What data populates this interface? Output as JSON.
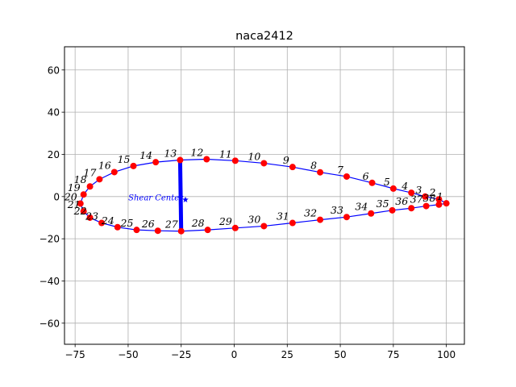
{
  "chart_data": {
    "type": "scatter",
    "title": "naca2412",
    "xlim": [
      -80,
      108.5
    ],
    "ylim": [
      -70,
      71
    ],
    "xticks": [
      -75,
      -50,
      -25,
      0,
      25,
      50,
      75,
      100
    ],
    "yticks": [
      -60,
      -40,
      -20,
      0,
      20,
      40,
      60
    ],
    "xtick_labels": [
      "−75",
      "−50",
      "−25",
      "0",
      "25",
      "50",
      "75",
      "100"
    ],
    "ytick_labels": [
      "−60",
      "−40",
      "−20",
      "0",
      "20",
      "40",
      "60"
    ],
    "grid": true,
    "colors": {
      "nodes": "#ff0000",
      "outline": "#0000ff",
      "spar": "#0000ff",
      "shear_center": "#0000ff"
    },
    "nodes": [
      {
        "label": "1",
        "x": 100.0,
        "y": -3.2
      },
      {
        "label": "2",
        "x": 96.5,
        "y": -1.3
      },
      {
        "label": "3",
        "x": 90.0,
        "y": 0.0
      },
      {
        "label": "4",
        "x": 83.5,
        "y": 1.8
      },
      {
        "label": "5",
        "x": 75.0,
        "y": 3.8
      },
      {
        "label": "6",
        "x": 65.0,
        "y": 6.5
      },
      {
        "label": "7",
        "x": 53.0,
        "y": 9.5
      },
      {
        "label": "8",
        "x": 40.5,
        "y": 11.5
      },
      {
        "label": "9",
        "x": 27.5,
        "y": 14.0
      },
      {
        "label": "10",
        "x": 14.0,
        "y": 15.8
      },
      {
        "label": "11",
        "x": 0.5,
        "y": 17.0
      },
      {
        "label": "12",
        "x": -13.0,
        "y": 17.7
      },
      {
        "label": "13",
        "x": -25.5,
        "y": 17.3
      },
      {
        "label": "14",
        "x": -37.0,
        "y": 16.3
      },
      {
        "label": "15",
        "x": -47.5,
        "y": 14.5
      },
      {
        "label": "16",
        "x": -56.5,
        "y": 11.6
      },
      {
        "label": "17",
        "x": -63.5,
        "y": 8.2
      },
      {
        "label": "18",
        "x": -68.0,
        "y": 4.8
      },
      {
        "label": "19",
        "x": -71.0,
        "y": 1.0
      },
      {
        "label": "20",
        "x": -72.5,
        "y": -3.3
      },
      {
        "label": "21",
        "x": -71.0,
        "y": -7.0
      },
      {
        "label": "22",
        "x": -68.0,
        "y": -10.0
      },
      {
        "label": "23",
        "x": -62.5,
        "y": -12.5
      },
      {
        "label": "24",
        "x": -55.0,
        "y": -14.5
      },
      {
        "label": "25",
        "x": -46.0,
        "y": -15.8
      },
      {
        "label": "26",
        "x": -36.0,
        "y": -16.2
      },
      {
        "label": "27",
        "x": -25.0,
        "y": -16.4
      },
      {
        "label": "28",
        "x": -12.5,
        "y": -15.8
      },
      {
        "label": "29",
        "x": 0.5,
        "y": -14.9
      },
      {
        "label": "30",
        "x": 14.0,
        "y": -14.0
      },
      {
        "label": "31",
        "x": 27.5,
        "y": -12.5
      },
      {
        "label": "32",
        "x": 40.5,
        "y": -11.0
      },
      {
        "label": "33",
        "x": 53.0,
        "y": -9.7
      },
      {
        "label": "34",
        "x": 64.5,
        "y": -8.0
      },
      {
        "label": "35",
        "x": 74.5,
        "y": -6.5
      },
      {
        "label": "36",
        "x": 83.5,
        "y": -5.5
      },
      {
        "label": "37",
        "x": 90.5,
        "y": -4.5
      },
      {
        "label": "38",
        "x": 96.5,
        "y": -3.8
      }
    ],
    "spar": {
      "from": [
        -25.5,
        17.3
      ],
      "to": [
        -25.0,
        -16.4
      ]
    },
    "shear_center": {
      "label": "Shear Center",
      "x": -23.0,
      "y": -1.5
    }
  }
}
